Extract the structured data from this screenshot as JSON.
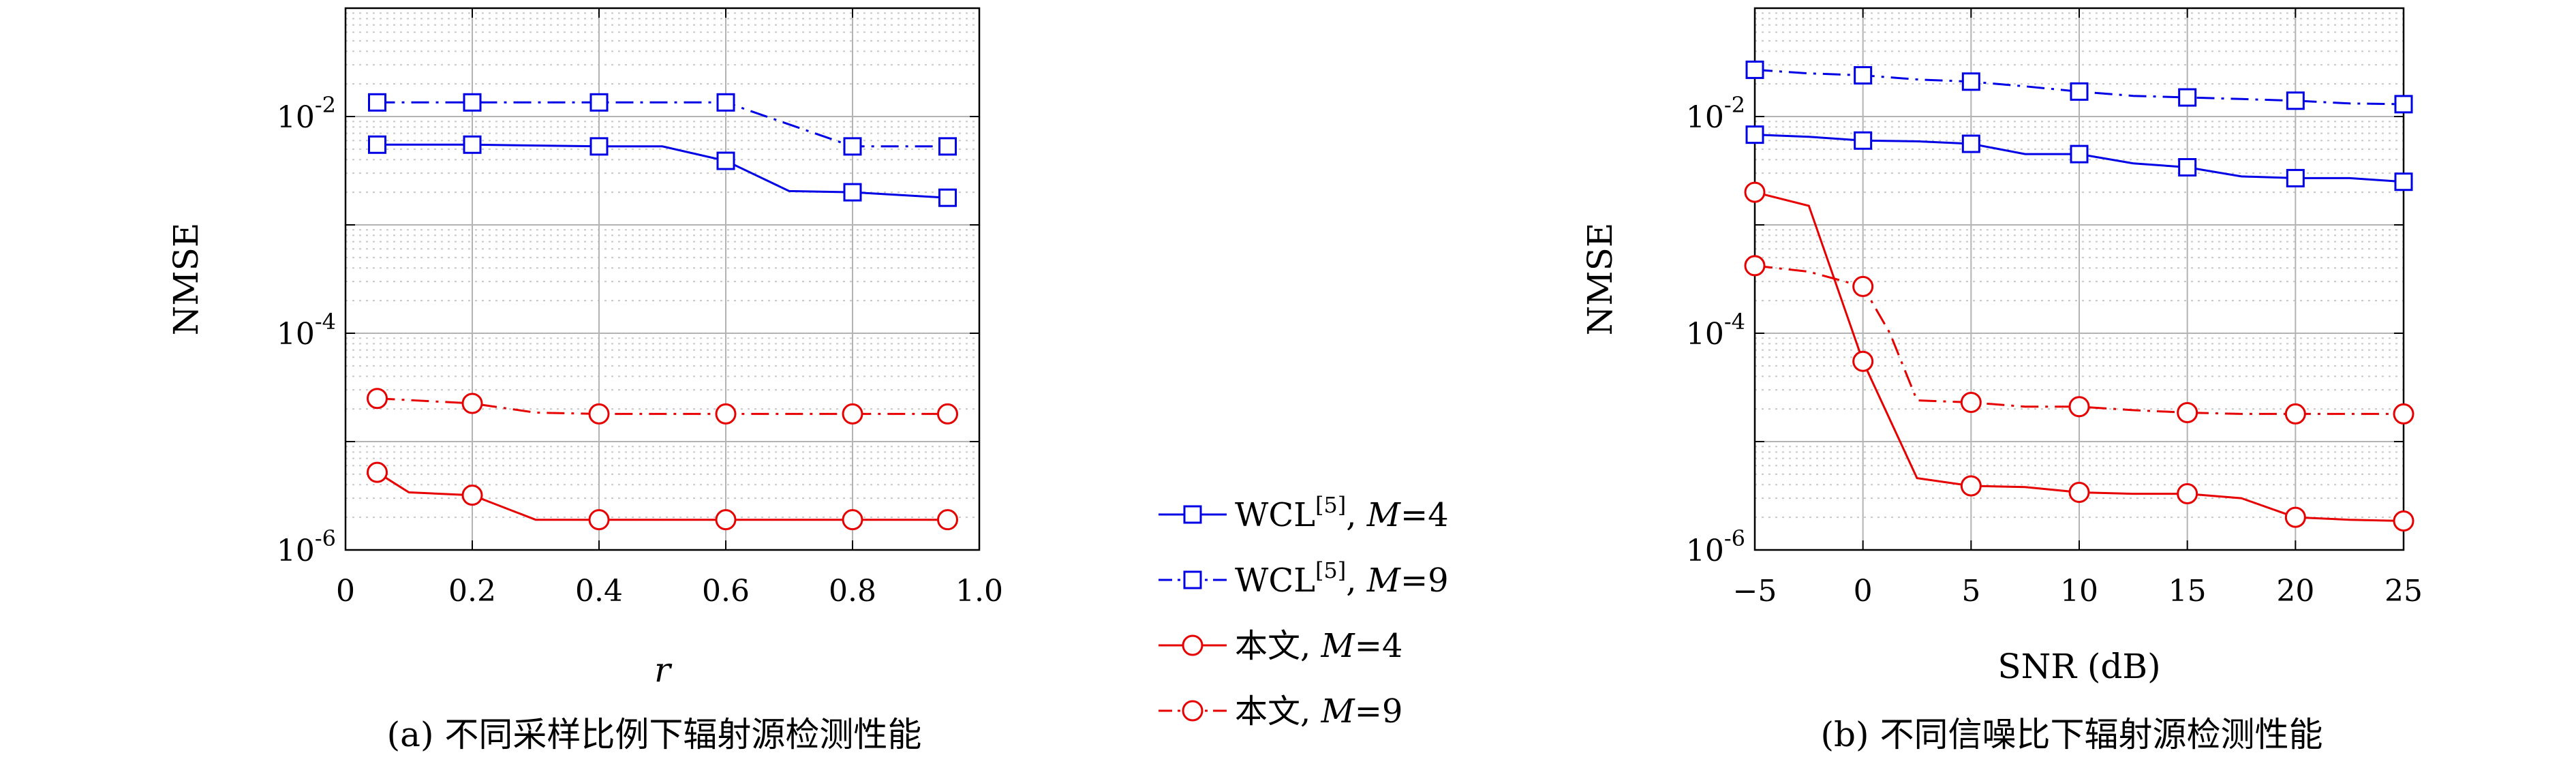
{
  "chart_data": [
    {
      "type": "line",
      "caption": "(a) 不同采样比例下辐射源检测性能",
      "xlabel": "r",
      "ylabel": "NMSE",
      "xlim": [
        0,
        1.0
      ],
      "ylim": [
        1e-06,
        0.1
      ],
      "yscale": "log",
      "grid": true,
      "xticks": [
        "0",
        "0.2",
        "0.4",
        "0.6",
        "0.8",
        "1.0"
      ],
      "xtick_values": [
        0,
        0.2,
        0.4,
        0.6,
        0.8,
        1.0
      ],
      "yticks": [
        {
          "base": "10",
          "exp": "-6",
          "value": 1e-06
        },
        {
          "base": "10",
          "exp": "-4",
          "value": 0.0001
        },
        {
          "base": "10",
          "exp": "-2",
          "value": 0.01
        }
      ],
      "series": [
        {
          "legend_id": 0,
          "x": [
            0.05,
            0.2,
            0.4,
            0.5,
            0.6,
            0.7,
            0.8,
            0.95
          ],
          "y": [
            0.0055,
            0.0055,
            0.0053,
            0.0053,
            0.0039,
            0.00205,
            0.002,
            0.00178
          ],
          "marker_idx": [
            0,
            1,
            2,
            4,
            6,
            7
          ]
        },
        {
          "legend_id": 1,
          "x": [
            0.05,
            0.2,
            0.4,
            0.6,
            0.8,
            0.95
          ],
          "y": [
            0.0135,
            0.0135,
            0.0135,
            0.0135,
            0.0053,
            0.0053
          ],
          "marker_idx": [
            0,
            1,
            2,
            3,
            4,
            5
          ]
        },
        {
          "legend_id": 2,
          "x": [
            0.05,
            0.1,
            0.2,
            0.3,
            0.4,
            0.6,
            0.8,
            0.95
          ],
          "y": [
            5.2e-06,
            3.4e-06,
            3.2e-06,
            1.9e-06,
            1.9e-06,
            1.9e-06,
            1.9e-06,
            1.9e-06
          ],
          "marker_idx": [
            0,
            2,
            4,
            5,
            6,
            7
          ]
        },
        {
          "legend_id": 3,
          "x": [
            0.05,
            0.2,
            0.3,
            0.4,
            0.6,
            0.8,
            0.95
          ],
          "y": [
            2.5e-05,
            2.25e-05,
            1.85e-05,
            1.8e-05,
            1.8e-05,
            1.8e-05,
            1.8e-05
          ],
          "marker_idx": [
            0,
            1,
            3,
            4,
            5,
            6
          ]
        }
      ]
    },
    {
      "type": "line",
      "caption": "(b) 不同信噪比下辐射源检测性能",
      "xlabel": "SNR (dB)",
      "ylabel": "NMSE",
      "xlim": [
        -5,
        25
      ],
      "ylim": [
        1e-06,
        0.1
      ],
      "yscale": "log",
      "grid": true,
      "xticks": [
        "−5",
        "0",
        "5",
        "10",
        "15",
        "20",
        "25"
      ],
      "xtick_values": [
        -5,
        0,
        5,
        10,
        15,
        20,
        25
      ],
      "yticks": [
        {
          "base": "10",
          "exp": "-6",
          "value": 1e-06
        },
        {
          "base": "10",
          "exp": "-4",
          "value": 0.0001
        },
        {
          "base": "10",
          "exp": "-2",
          "value": 0.01
        }
      ],
      "series": [
        {
          "legend_id": 0,
          "x": [
            -5,
            -2.5,
            0,
            2.5,
            5,
            7.5,
            10,
            12.5,
            15,
            17.5,
            20,
            22.5,
            25
          ],
          "y": [
            0.0068,
            0.0065,
            0.006,
            0.0059,
            0.0056,
            0.0045,
            0.0045,
            0.0037,
            0.0034,
            0.0028,
            0.0027,
            0.0027,
            0.0025
          ],
          "marker_idx": [
            0,
            2,
            4,
            6,
            8,
            10,
            12
          ]
        },
        {
          "legend_id": 1,
          "x": [
            -5,
            -2.5,
            0,
            2.5,
            5,
            7.5,
            10,
            12.5,
            15,
            17.5,
            20,
            22.5,
            25
          ],
          "y": [
            0.027,
            0.025,
            0.024,
            0.022,
            0.021,
            0.019,
            0.017,
            0.0155,
            0.015,
            0.0145,
            0.014,
            0.0132,
            0.013
          ],
          "marker_idx": [
            0,
            2,
            4,
            6,
            8,
            10,
            12
          ]
        },
        {
          "legend_id": 2,
          "x": [
            -5,
            -2.5,
            0,
            2.5,
            5,
            7.5,
            10,
            12.5,
            15,
            17.5,
            20,
            22.5,
            25
          ],
          "y": [
            0.002,
            0.0015,
            5.5e-05,
            4.6e-06,
            3.9e-06,
            3.8e-06,
            3.4e-06,
            3.3e-06,
            3.3e-06,
            3e-06,
            2e-06,
            1.9e-06,
            1.85e-06
          ],
          "marker_idx": [
            0,
            2,
            4,
            6,
            8,
            10,
            12
          ]
        },
        {
          "legend_id": 3,
          "x": [
            -5,
            -2.5,
            0,
            1.25,
            2.5,
            5,
            7.5,
            10,
            12.5,
            15,
            17.5,
            20,
            22.5,
            25
          ],
          "y": [
            0.00042,
            0.00037,
            0.00027,
            0.0001,
            2.4e-05,
            2.3e-05,
            2.1e-05,
            2.1e-05,
            1.95e-05,
            1.85e-05,
            1.8e-05,
            1.8e-05,
            1.8e-05,
            1.8e-05
          ],
          "marker_idx": [
            0,
            2,
            5,
            7,
            9,
            11,
            13
          ]
        }
      ]
    }
  ],
  "legend": [
    {
      "prefix": "WCL",
      "sup": "[5]",
      "sep": ", ",
      "var": "M",
      "suffix": "=4",
      "color": "#0000e6",
      "dash": "solid",
      "marker": "square"
    },
    {
      "prefix": "WCL",
      "sup": "[5]",
      "sep": ", ",
      "var": "M",
      "suffix": "=9",
      "color": "#0000e6",
      "dash": "dashdot",
      "marker": "square"
    },
    {
      "prefix": "本文",
      "sup": "",
      "sep": ", ",
      "var": "M",
      "suffix": "=4",
      "color": "#e60000",
      "dash": "solid",
      "marker": "circle"
    },
    {
      "prefix": "本文",
      "sup": "",
      "sep": ", ",
      "var": "M",
      "suffix": "=9",
      "color": "#e60000",
      "dash": "dashdot",
      "marker": "circle"
    }
  ]
}
